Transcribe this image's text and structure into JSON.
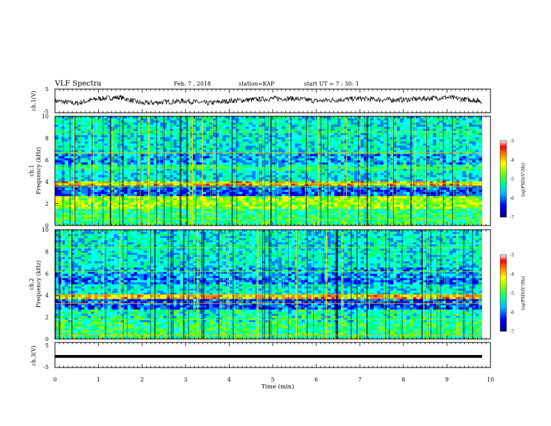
{
  "header": {
    "title": "VLF Spectra",
    "date": "Feb. 7 , 2018",
    "station": "station=KAP",
    "start": "start  UT =   7 : 30: 1"
  },
  "chart_data": [
    {
      "type": "line",
      "panel": "ch1-waveform",
      "ylabel": "ch.1(V)",
      "ylim": [
        -5,
        5
      ],
      "yticks": [
        "5",
        "-5"
      ],
      "xlim": [
        0,
        10
      ],
      "series": [
        {
          "values_description_free": true,
          "x": [
            0,
            0.5,
            1,
            1.5,
            2,
            2.5,
            3,
            3.5,
            4,
            4.5,
            5,
            5.5,
            6,
            6.5,
            7,
            7.5,
            8,
            8.5,
            9,
            9.5,
            9.8
          ],
          "y": [
            0,
            -1,
            1,
            1.5,
            -1,
            -0.5,
            0,
            -1,
            0,
            0.5,
            1,
            1,
            0,
            0.5,
            1,
            0.5,
            0.5,
            1,
            1.5,
            0.5,
            0
          ]
        }
      ]
    },
    {
      "type": "heatmap",
      "panel": "ch1-spectrogram",
      "ylabel": "ch.1\nFrequency (kHz)",
      "ylim": [
        0,
        10
      ],
      "yticks": [
        "0",
        "2",
        "4",
        "6",
        "8",
        "10"
      ],
      "xlim": [
        0,
        10
      ],
      "colorbar": {
        "label": "log(PSD)(V²/Hz)",
        "range": [
          -7,
          -3
        ],
        "ticks": [
          "-3",
          "-4",
          "-5",
          "-6",
          "-7"
        ]
      }
    },
    {
      "type": "heatmap",
      "panel": "ch2-spectrogram",
      "ylabel": "ch.2\nFrequency (kHz)",
      "ylim": [
        0,
        10
      ],
      "yticks": [
        "0",
        "2",
        "4",
        "6",
        "8",
        "10"
      ],
      "xlim": [
        0,
        10
      ],
      "colorbar": {
        "label": "log(PSD)(V²/Hz)",
        "range": [
          -7,
          -3
        ],
        "ticks": [
          "-3",
          "-4",
          "-5",
          "-6",
          "-7"
        ]
      }
    },
    {
      "type": "line",
      "panel": "ch3-waveform",
      "ylabel": "ch.3(V)",
      "ylim": [
        -5,
        5
      ],
      "yticks": [
        "5",
        "-5"
      ],
      "xlim": [
        0,
        10
      ],
      "series": [
        {
          "x": [
            0,
            9.8
          ],
          "y": [
            -1.5,
            -1.5
          ]
        }
      ]
    }
  ],
  "xaxis": {
    "label": "Time (min)",
    "ticks": [
      "0",
      "1",
      "2",
      "3",
      "4",
      "5",
      "6",
      "7",
      "8",
      "9",
      "10"
    ]
  },
  "labels": {
    "ch1v": "ch.1(V)",
    "ch1a": "ch.1",
    "ch1b": "Frequency (kHz)",
    "ch2a": "ch.2",
    "ch2b": "Frequency (kHz)",
    "ch3v": "ch.3(V)",
    "cb_label": "log(PSD)(V²/Hz)",
    "w5": "5",
    "wm5": "-5"
  },
  "colors": {
    "colormap": [
      "#000080",
      "#0000ff",
      "#0080ff",
      "#00ffff",
      "#00ff80",
      "#80ff00",
      "#ffff00",
      "#ff8000",
      "#ff0000",
      "#800000"
    ]
  }
}
